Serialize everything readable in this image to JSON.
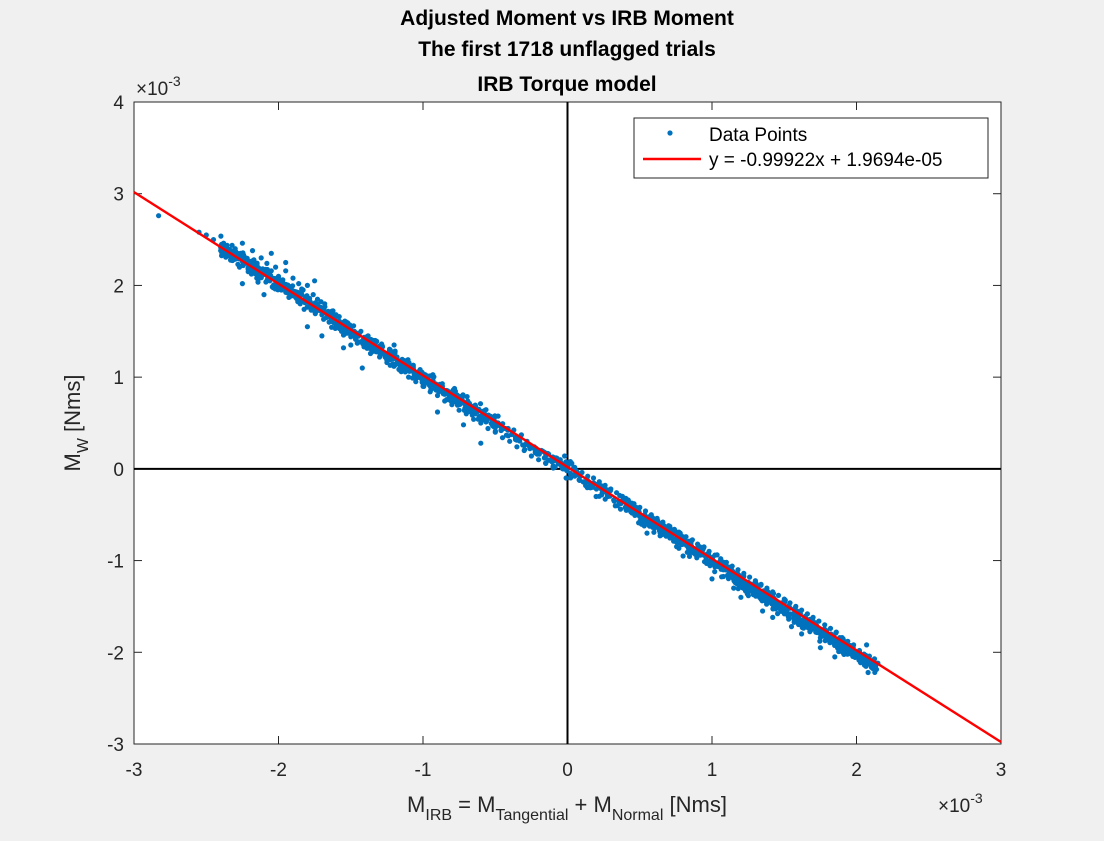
{
  "chart_data": {
    "type": "scatter",
    "title_lines": [
      "Adjusted Moment vs IRB Moment",
      "The first 1718 unflagged trials",
      "IRB Torque model"
    ],
    "xlabel": {
      "base": "M",
      "sub1": "IRB",
      "eq": " = M",
      "sub2": "Tangential",
      "plus": " + M",
      "sub3": "Normal",
      "unit": " [Nms]"
    },
    "ylabel": {
      "base": "M",
      "sub": "W",
      "unit": " [Nms]"
    },
    "x_exponent": {
      "base": "×10",
      "exp": "-3"
    },
    "y_exponent": {
      "base": "×10",
      "exp": "-3"
    },
    "xlim": [
      -3,
      3
    ],
    "ylim": [
      -3,
      4
    ],
    "x_ticks": [
      -3,
      -2,
      -1,
      0,
      1,
      2,
      3
    ],
    "y_ticks": [
      -3,
      -2,
      -1,
      0,
      1,
      2,
      3,
      4
    ],
    "x_tick_labels": [
      "-3",
      "-2",
      "-1",
      "0",
      "1",
      "2",
      "3"
    ],
    "y_tick_labels": [
      "-3",
      "-2",
      "-1",
      "0",
      "1",
      "2",
      "3",
      "4"
    ],
    "axis_scale_note": "axis values in units of 1e-3 Nms",
    "grid": false,
    "zero_lines": true,
    "legend_position": "top-right",
    "series": [
      {
        "name": "Data Points",
        "kind": "scatter",
        "color": "#0072BD",
        "count": 1718,
        "points": [
          [
            -2.83,
            2.76
          ],
          [
            -2.55,
            2.58
          ],
          [
            -2.5,
            2.55
          ],
          [
            -2.45,
            2.5
          ],
          [
            -2.4,
            2.38
          ],
          [
            -2.38,
            2.46
          ],
          [
            -2.35,
            2.35
          ],
          [
            -2.33,
            2.28
          ],
          [
            -2.3,
            2.4
          ],
          [
            -2.28,
            2.32
          ],
          [
            -2.27,
            2.2
          ],
          [
            -2.25,
            2.46
          ],
          [
            -2.23,
            2.3
          ],
          [
            -2.21,
            2.15
          ],
          [
            -2.2,
            2.25
          ],
          [
            -2.18,
            2.38
          ],
          [
            -2.16,
            2.22
          ],
          [
            -2.15,
            2.08
          ],
          [
            -2.13,
            2.18
          ],
          [
            -2.12,
            2.3
          ],
          [
            -2.1,
            2.12
          ],
          [
            -2.08,
            2.24
          ],
          [
            -2.06,
            2.05
          ],
          [
            -2.05,
            2.16
          ],
          [
            -2.03,
            2.0
          ],
          [
            -2.02,
            2.2
          ],
          [
            -2.0,
            2.1
          ],
          [
            -1.98,
            1.95
          ],
          [
            -1.97,
            2.06
          ],
          [
            -1.95,
            2.16
          ],
          [
            -1.93,
            1.98
          ],
          [
            -1.92,
            1.88
          ],
          [
            -1.9,
            2.08
          ],
          [
            -1.88,
            1.92
          ],
          [
            -1.86,
            2.02
          ],
          [
            -1.85,
            1.8
          ],
          [
            -1.83,
            1.95
          ],
          [
            -1.82,
            1.85
          ],
          [
            -1.8,
            2.0
          ],
          [
            -1.78,
            1.82
          ],
          [
            -1.76,
            1.9
          ],
          [
            -1.75,
            1.72
          ],
          [
            -1.73,
            1.85
          ],
          [
            -1.71,
            1.76
          ],
          [
            -1.7,
            1.68
          ],
          [
            -1.68,
            1.8
          ],
          [
            -1.66,
            1.7
          ],
          [
            -1.65,
            1.6
          ],
          [
            -1.63,
            1.72
          ],
          [
            -1.61,
            1.64
          ],
          [
            -1.6,
            1.55
          ],
          [
            -1.58,
            1.66
          ],
          [
            -1.56,
            1.58
          ],
          [
            -1.55,
            1.46
          ],
          [
            -1.53,
            1.6
          ],
          [
            -1.51,
            1.52
          ],
          [
            -1.5,
            1.44
          ],
          [
            -1.48,
            1.56
          ],
          [
            -1.46,
            1.48
          ],
          [
            -1.45,
            1.38
          ],
          [
            -1.43,
            1.5
          ],
          [
            -1.41,
            1.42
          ],
          [
            -1.4,
            1.33
          ],
          [
            -1.38,
            1.45
          ],
          [
            -1.36,
            1.36
          ],
          [
            -1.35,
            1.28
          ],
          [
            -1.33,
            1.4
          ],
          [
            -1.31,
            1.3
          ],
          [
            -1.3,
            1.22
          ],
          [
            -1.28,
            1.33
          ],
          [
            -1.26,
            1.25
          ],
          [
            -1.25,
            1.16
          ],
          [
            -1.23,
            1.28
          ],
          [
            -1.21,
            1.2
          ],
          [
            -1.2,
            1.12
          ],
          [
            -1.18,
            1.22
          ],
          [
            -1.16,
            1.14
          ],
          [
            -1.15,
            1.06
          ],
          [
            -1.13,
            1.18
          ],
          [
            -1.11,
            1.08
          ],
          [
            -1.1,
            1.0
          ],
          [
            -1.08,
            1.12
          ],
          [
            -1.06,
            1.03
          ],
          [
            -1.05,
            0.95
          ],
          [
            -1.03,
            1.06
          ],
          [
            -1.01,
            0.98
          ],
          [
            -1.0,
            0.9
          ],
          [
            -0.98,
            1.0
          ],
          [
            -0.96,
            0.92
          ],
          [
            -0.95,
            0.84
          ],
          [
            -0.93,
            0.96
          ],
          [
            -0.91,
            0.86
          ],
          [
            -0.9,
            0.8
          ],
          [
            -0.88,
            0.9
          ],
          [
            -0.86,
            0.82
          ],
          [
            -0.85,
            0.74
          ],
          [
            -0.83,
            0.85
          ],
          [
            -0.81,
            0.76
          ],
          [
            -0.8,
            0.7
          ],
          [
            -0.78,
            0.8
          ],
          [
            -0.76,
            0.72
          ],
          [
            -0.75,
            0.64
          ],
          [
            -0.73,
            0.75
          ],
          [
            -0.71,
            0.66
          ],
          [
            -0.7,
            0.6
          ],
          [
            -0.68,
            0.7
          ],
          [
            -0.66,
            0.62
          ],
          [
            -0.65,
            0.54
          ],
          [
            -0.63,
            0.65
          ],
          [
            -0.61,
            0.56
          ],
          [
            -0.6,
            0.5
          ],
          [
            -0.58,
            0.6
          ],
          [
            -0.56,
            0.52
          ],
          [
            -0.55,
            0.44
          ],
          [
            -0.53,
            0.55
          ],
          [
            -0.51,
            0.46
          ],
          [
            -0.5,
            0.4
          ],
          [
            -0.48,
            0.5
          ],
          [
            -0.46,
            0.42
          ],
          [
            -0.45,
            0.34
          ],
          [
            -0.43,
            0.44
          ],
          [
            -0.41,
            0.36
          ],
          [
            -0.4,
            0.3
          ],
          [
            -0.38,
            0.4
          ],
          [
            -0.36,
            0.32
          ],
          [
            -0.35,
            0.24
          ],
          [
            -0.33,
            0.34
          ],
          [
            -0.31,
            0.26
          ],
          [
            -0.3,
            0.2
          ],
          [
            -0.28,
            0.3
          ],
          [
            -0.26,
            0.22
          ],
          [
            -0.25,
            0.14
          ],
          [
            -0.23,
            0.24
          ],
          [
            -0.21,
            0.16
          ],
          [
            -0.2,
            0.1
          ],
          [
            -0.18,
            0.2
          ],
          [
            -0.16,
            0.12
          ],
          [
            -0.15,
            0.06
          ],
          [
            -0.13,
            0.16
          ],
          [
            -0.11,
            0.08
          ],
          [
            -0.1,
            0.02
          ],
          [
            -0.08,
            0.12
          ],
          [
            -0.06,
            0.06
          ],
          [
            -0.05,
            0.1
          ],
          [
            -0.03,
            0.0
          ],
          [
            -0.02,
            0.14
          ],
          [
            -0.01,
            -0.1
          ],
          [
            0.0,
            0.05
          ],
          [
            0.02,
            -0.05
          ],
          [
            0.03,
            0.06
          ],
          [
            0.05,
            -0.08
          ],
          [
            0.06,
            -0.02
          ],
          [
            0.08,
            -0.12
          ],
          [
            0.1,
            -0.04
          ],
          [
            0.12,
            -0.14
          ],
          [
            0.14,
            -0.08
          ],
          [
            0.16,
            -0.18
          ],
          [
            0.18,
            -0.1
          ],
          [
            0.2,
            -0.22
          ],
          [
            0.22,
            -0.14
          ],
          [
            0.24,
            -0.26
          ],
          [
            0.26,
            -0.18
          ],
          [
            0.28,
            -0.3
          ],
          [
            0.3,
            -0.22
          ],
          [
            0.32,
            -0.34
          ],
          [
            0.34,
            -0.26
          ],
          [
            0.36,
            -0.38
          ],
          [
            0.38,
            -0.3
          ],
          [
            0.4,
            -0.42
          ],
          [
            0.42,
            -0.34
          ],
          [
            0.44,
            -0.46
          ],
          [
            0.46,
            -0.38
          ],
          [
            0.48,
            -0.5
          ],
          [
            0.5,
            -0.42
          ],
          [
            0.52,
            -0.54
          ],
          [
            0.54,
            -0.46
          ],
          [
            0.56,
            -0.58
          ],
          [
            0.58,
            -0.5
          ],
          [
            0.6,
            -0.62
          ],
          [
            0.62,
            -0.54
          ],
          [
            0.64,
            -0.66
          ],
          [
            0.66,
            -0.58
          ],
          [
            0.68,
            -0.7
          ],
          [
            0.7,
            -0.62
          ],
          [
            0.72,
            -0.74
          ],
          [
            0.74,
            -0.66
          ],
          [
            0.76,
            -0.78
          ],
          [
            0.78,
            -0.7
          ],
          [
            0.8,
            -0.82
          ],
          [
            0.82,
            -0.74
          ],
          [
            0.84,
            -0.86
          ],
          [
            0.86,
            -0.78
          ],
          [
            0.88,
            -0.9
          ],
          [
            0.9,
            -0.82
          ],
          [
            0.92,
            -0.94
          ],
          [
            0.94,
            -0.86
          ],
          [
            0.96,
            -0.98
          ],
          [
            0.98,
            -0.9
          ],
          [
            1.0,
            -1.02
          ],
          [
            1.02,
            -0.94
          ],
          [
            1.04,
            -1.06
          ],
          [
            1.06,
            -0.98
          ],
          [
            1.08,
            -1.1
          ],
          [
            1.1,
            -1.02
          ],
          [
            1.12,
            -1.14
          ],
          [
            1.14,
            -1.06
          ],
          [
            1.16,
            -1.18
          ],
          [
            1.18,
            -1.1
          ],
          [
            1.2,
            -1.22
          ],
          [
            1.22,
            -1.14
          ],
          [
            1.24,
            -1.26
          ],
          [
            1.26,
            -1.18
          ],
          [
            1.28,
            -1.3
          ],
          [
            1.3,
            -1.22
          ],
          [
            1.32,
            -1.34
          ],
          [
            1.34,
            -1.26
          ],
          [
            1.36,
            -1.38
          ],
          [
            1.38,
            -1.3
          ],
          [
            1.4,
            -1.42
          ],
          [
            1.42,
            -1.34
          ],
          [
            1.44,
            -1.46
          ],
          [
            1.46,
            -1.38
          ],
          [
            1.48,
            -1.5
          ],
          [
            1.5,
            -1.42
          ],
          [
            1.52,
            -1.54
          ],
          [
            1.54,
            -1.46
          ],
          [
            1.56,
            -1.58
          ],
          [
            1.58,
            -1.5
          ],
          [
            1.6,
            -1.62
          ],
          [
            1.62,
            -1.54
          ],
          [
            1.64,
            -1.66
          ],
          [
            1.66,
            -1.58
          ],
          [
            1.68,
            -1.7
          ],
          [
            1.7,
            -1.62
          ],
          [
            1.72,
            -1.74
          ],
          [
            1.74,
            -1.66
          ],
          [
            1.76,
            -1.78
          ],
          [
            1.78,
            -1.7
          ],
          [
            1.8,
            -1.82
          ],
          [
            1.82,
            -1.74
          ],
          [
            1.84,
            -1.86
          ],
          [
            1.86,
            -1.78
          ],
          [
            1.88,
            -1.9
          ],
          [
            1.9,
            -1.84
          ],
          [
            1.92,
            -1.94
          ],
          [
            1.94,
            -1.88
          ],
          [
            1.96,
            -1.98
          ],
          [
            1.98,
            -1.92
          ],
          [
            2.0,
            -2.02
          ],
          [
            2.02,
            -1.98
          ],
          [
            2.04,
            -2.06
          ],
          [
            2.06,
            -2.12
          ],
          [
            2.08,
            -2.22
          ],
          [
            2.07,
            -1.92
          ],
          [
            -1.7,
            1.45
          ],
          [
            -1.5,
            1.35
          ],
          [
            -1.42,
            1.1
          ],
          [
            -1.55,
            1.32
          ],
          [
            -1.8,
            1.55
          ],
          [
            -2.1,
            1.9
          ],
          [
            -2.25,
            2.02
          ],
          [
            -0.6,
            0.28
          ],
          [
            -0.72,
            0.48
          ],
          [
            -0.9,
            0.62
          ],
          [
            1.0,
            -1.2
          ],
          [
            1.2,
            -1.4
          ],
          [
            1.42,
            -1.62
          ],
          [
            1.62,
            -1.8
          ],
          [
            0.8,
            -0.95
          ],
          [
            -1.95,
            2.25
          ],
          [
            -1.75,
            2.05
          ],
          [
            -2.05,
            2.35
          ],
          [
            -1.2,
            1.35
          ],
          [
            0.55,
            -0.7
          ],
          [
            1.15,
            -1.3
          ],
          [
            1.35,
            -1.55
          ],
          [
            1.55,
            -1.72
          ],
          [
            1.75,
            -1.95
          ],
          [
            1.85,
            -2.05
          ]
        ]
      },
      {
        "name": "y = -0.99922x + 1.9694e-05",
        "kind": "line",
        "color": "#FF0000",
        "slope": -0.99922,
        "intercept_nms": 1.9694e-05,
        "x_range": [
          -3,
          3
        ]
      }
    ]
  }
}
